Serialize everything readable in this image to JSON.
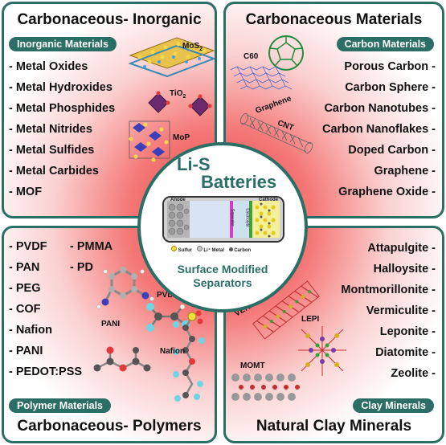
{
  "quadrants": {
    "top_left": {
      "title": "Carbonaceous- Inorganic",
      "pill": "Inorganic Materials",
      "items": [
        "- Metal Oxides",
        "- Metal Hydroxides",
        "- Metal Phosphides",
        "- Metal Nitrides",
        "- Metal Sulfides",
        "- Metal Carbides",
        "- MOF"
      ],
      "molecule_labels": {
        "mos2": "MoS",
        "mos2_sub": "2",
        "tio2": "TiO",
        "tio2_sub": "2",
        "mop": "MoP"
      }
    },
    "top_right": {
      "title": "Carbonaceous Materials",
      "pill": "Carbon Materials",
      "items": [
        "Porous Carbon -",
        "Carbon Sphere -",
        "Carbon Nanotubes -",
        "Carbon Nanoflakes -",
        "Doped Carbon -",
        "Graphene -",
        "Graphene Oxide -"
      ],
      "molecule_labels": {
        "c60": "C60",
        "graphene": "Graphene",
        "cnt": "CNT"
      }
    },
    "bottom_left": {
      "title": "Carbonaceous- Polymers",
      "pill": "Polymer Materials",
      "items_col1": [
        "- PVDF",
        "- PAN",
        "- PEG",
        "- COF",
        "- Nafion",
        "- PANI",
        "- PEDOT:PSS"
      ],
      "items_col2": [
        "- PMMA",
        "- PD"
      ],
      "molecule_labels": {
        "pani": "PANI",
        "pvdf": "PVDF",
        "nafion": "Nafion"
      }
    },
    "bottom_right": {
      "title": "Natural Clay Minerals",
      "pill": "Clay Minerals",
      "items": [
        "Attapulgite -",
        "Halloysite -",
        "Montmorillonite -",
        "Vermiculite -",
        "Leponite -",
        "Diatomite -",
        "Zeolite -"
      ],
      "molecule_labels": {
        "verm": "VERM",
        "lepi": "LEPI",
        "momt": "MOMT"
      }
    }
  },
  "center": {
    "title_line1": "Li-S",
    "title_line2": "Batteries",
    "caption_line1": "Surface Modified",
    "caption_line2": "Separators",
    "battery": {
      "anode": "Anode",
      "cathode": "Cathode",
      "separator": "Separator",
      "electrolyte": "Electrolyte",
      "legend": [
        "Sulfur",
        "Li⁺ Metal",
        "Carbon"
      ]
    }
  },
  "colors": {
    "frame": "#2a6e66",
    "accent_red": "#e83a3e",
    "sulfur": "#f2e03a",
    "carbon": "#555555",
    "li_metal": "#c9c9c9"
  }
}
